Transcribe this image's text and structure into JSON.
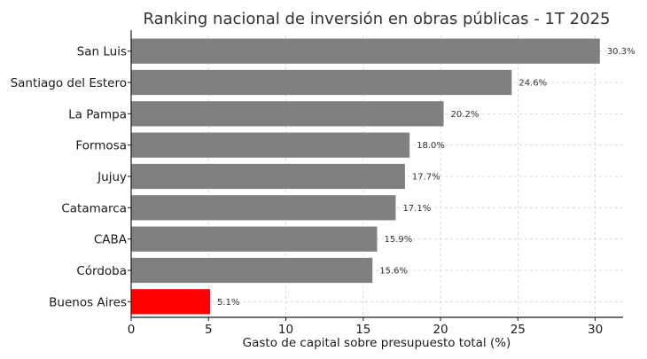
{
  "chart_data": {
    "type": "bar",
    "orientation": "horizontal",
    "title": "Ranking nacional de inversión en obras públicas - 1T 2025",
    "xlabel": "Gasto de capital sobre presupuesto total (%)",
    "ylabel": "",
    "categories": [
      "San Luis",
      "Santiago del Estero",
      "La Pampa",
      "Formosa",
      "Jujuy",
      "Catamarca",
      "CABA",
      "Córdoba",
      "Buenos Aires"
    ],
    "values": [
      30.3,
      24.6,
      20.2,
      18.0,
      17.7,
      17.1,
      15.9,
      15.6,
      5.1
    ],
    "value_labels": [
      "30.3%",
      "24.6%",
      "20.2%",
      "18.0%",
      "17.7%",
      "17.1%",
      "15.9%",
      "15.6%",
      "5.1%"
    ],
    "xlim": [
      0,
      31.8
    ],
    "xticks": [
      0,
      5,
      10,
      15,
      20,
      25,
      30
    ],
    "xtick_labels": [
      "0",
      "5",
      "10",
      "15",
      "20",
      "25",
      "30"
    ],
    "grid": true,
    "colors": {
      "default_bar": "#808080",
      "highlight_bar": "#ff0000"
    },
    "highlight_category": "Buenos Aires"
  }
}
